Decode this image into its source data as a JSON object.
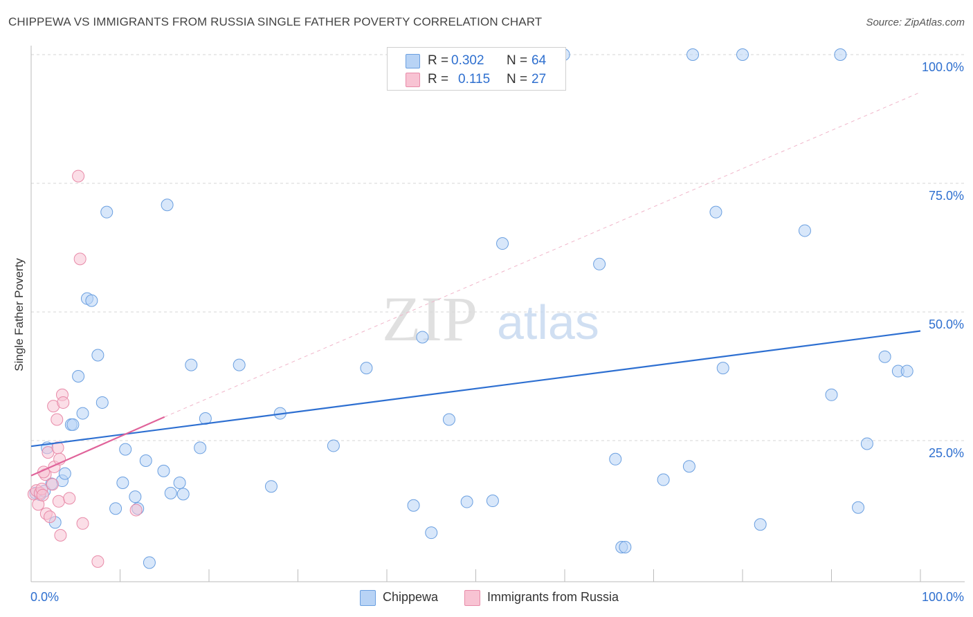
{
  "title": "CHIPPEWA VS IMMIGRANTS FROM RUSSIA SINGLE FATHER POVERTY CORRELATION CHART",
  "source": "Source: ZipAtlas.com",
  "watermark": {
    "zip": "ZIP",
    "atlas": "atlas"
  },
  "colors": {
    "chippewa_fill": "#b8d3f5",
    "chippewa_stroke": "#6a9fe0",
    "chippewa_line": "#2d6fd1",
    "russia_fill": "#f8c3d3",
    "russia_stroke": "#e88aa8",
    "russia_line": "#e0639a",
    "accent_text": "#2e6fcf",
    "grid": "#d5d5d5"
  },
  "legend": {
    "rows": [
      {
        "r_label": "R =",
        "r_value": "0.302",
        "n_label": "N =",
        "n_value": "64"
      },
      {
        "r_label": "R =",
        "r_value": "0.115",
        "n_label": "N =",
        "n_value": "27"
      }
    ]
  },
  "bottom_legend": {
    "items": [
      {
        "label": "Chippewa"
      },
      {
        "label": "Immigrants from Russia"
      }
    ]
  },
  "chart_data": {
    "type": "scatter",
    "title": "CHIPPEWA VS IMMIGRANTS FROM RUSSIA SINGLE FATHER POVERTY CORRELATION CHART",
    "xlabel": "",
    "ylabel": "Single Father Poverty",
    "xlim": [
      0,
      100
    ],
    "ylim": [
      0,
      100
    ],
    "x_tick_labels": [
      "0.0%",
      "100.0%"
    ],
    "y_tick_labels": [
      "25.0%",
      "50.0%",
      "75.0%",
      "100.0%"
    ],
    "y_ticks": [
      25,
      50,
      75,
      100
    ],
    "grid": "horizontal dashed",
    "legend_position": "top-center",
    "series": [
      {
        "name": "Chippewa",
        "r": 0.302,
        "n": 64,
        "trend": {
          "x0": 0,
          "y0": 23.9,
          "x1": 100,
          "y1": 46.3
        },
        "points": [
          [
            0.5,
            14.8
          ],
          [
            1.0,
            14.5
          ],
          [
            1.5,
            15.2
          ],
          [
            1.8,
            23.6
          ],
          [
            2.3,
            16.6
          ],
          [
            2.7,
            9.1
          ],
          [
            3.5,
            17.2
          ],
          [
            3.8,
            18.6
          ],
          [
            4.5,
            28.1
          ],
          [
            4.7,
            28.1
          ],
          [
            5.3,
            37.5
          ],
          [
            5.8,
            30.3
          ],
          [
            6.3,
            52.6
          ],
          [
            6.8,
            52.2
          ],
          [
            7.5,
            41.6
          ],
          [
            8.0,
            32.4
          ],
          [
            8.5,
            69.4
          ],
          [
            9.5,
            11.8
          ],
          [
            10.3,
            16.8
          ],
          [
            10.6,
            23.3
          ],
          [
            11.7,
            14.1
          ],
          [
            12.0,
            11.8
          ],
          [
            12.9,
            21.1
          ],
          [
            13.3,
            1.3
          ],
          [
            14.9,
            19.1
          ],
          [
            15.3,
            70.8
          ],
          [
            15.7,
            14.8
          ],
          [
            16.7,
            16.8
          ],
          [
            17.1,
            14.6
          ],
          [
            18.0,
            39.7
          ],
          [
            19.0,
            23.6
          ],
          [
            19.6,
            29.3
          ],
          [
            23.4,
            39.7
          ],
          [
            27.0,
            16.1
          ],
          [
            28.0,
            30.3
          ],
          [
            34.0,
            24.0
          ],
          [
            37.7,
            39.1
          ],
          [
            43.0,
            12.4
          ],
          [
            44.0,
            45.1
          ],
          [
            45.0,
            7.1
          ],
          [
            47.0,
            29.1
          ],
          [
            49.0,
            13.1
          ],
          [
            51.9,
            13.3
          ],
          [
            53.0,
            63.3
          ],
          [
            59.9,
            100
          ],
          [
            63.9,
            59.3
          ],
          [
            65.7,
            21.4
          ],
          [
            66.4,
            4.3
          ],
          [
            66.8,
            4.3
          ],
          [
            71.1,
            17.4
          ],
          [
            74.0,
            20.0
          ],
          [
            74.4,
            100
          ],
          [
            77.0,
            69.4
          ],
          [
            77.8,
            39.1
          ],
          [
            80.0,
            100
          ],
          [
            82.0,
            8.7
          ],
          [
            87.0,
            65.8
          ],
          [
            90.0,
            33.9
          ],
          [
            91.0,
            100
          ],
          [
            94.0,
            24.4
          ],
          [
            93.0,
            12.0
          ],
          [
            96.0,
            41.3
          ],
          [
            97.5,
            38.5
          ],
          [
            98.5,
            38.5
          ]
        ]
      },
      {
        "name": "Immigrants from Russia",
        "r": 0.115,
        "n": 27,
        "trend": {
          "x0": 0,
          "y0": 18.2,
          "x1": 15,
          "y1": 29.6
        },
        "points": [
          [
            0.3,
            14.6
          ],
          [
            0.6,
            15.3
          ],
          [
            0.8,
            12.6
          ],
          [
            1.0,
            14.8
          ],
          [
            1.2,
            15.6
          ],
          [
            1.3,
            14.4
          ],
          [
            1.6,
            18.4
          ],
          [
            1.7,
            10.8
          ],
          [
            1.9,
            22.7
          ],
          [
            2.1,
            10.2
          ],
          [
            2.4,
            16.5
          ],
          [
            2.5,
            31.7
          ],
          [
            2.6,
            19.9
          ],
          [
            2.9,
            29.1
          ],
          [
            3.0,
            23.6
          ],
          [
            3.1,
            13.2
          ],
          [
            3.2,
            21.4
          ],
          [
            3.3,
            6.6
          ],
          [
            3.5,
            33.9
          ],
          [
            3.6,
            32.4
          ],
          [
            4.3,
            13.8
          ],
          [
            5.3,
            76.4
          ],
          [
            5.5,
            60.3
          ],
          [
            5.8,
            8.9
          ],
          [
            7.5,
            1.5
          ],
          [
            11.8,
            11.5
          ],
          [
            1.4,
            18.9
          ]
        ]
      }
    ]
  }
}
